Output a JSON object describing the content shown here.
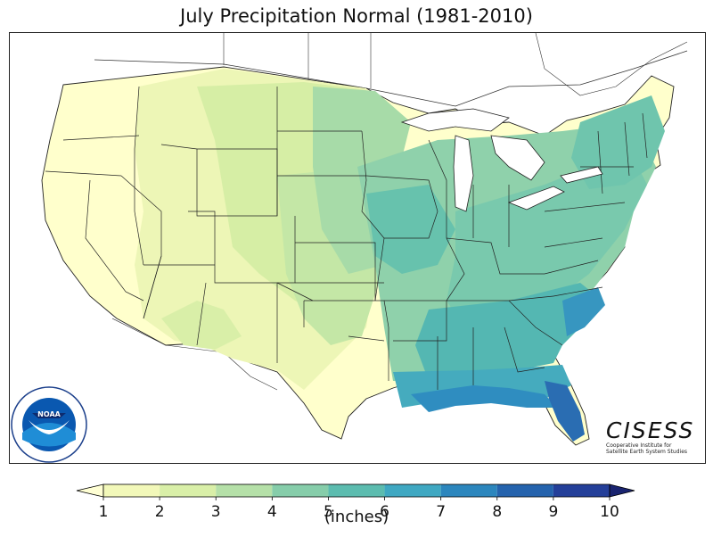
{
  "title": "July Precipitation Normal (1981-2010)",
  "colorbar": {
    "unit_label": "(inches)",
    "ticks": [
      "1",
      "2",
      "3",
      "4",
      "5",
      "6",
      "7",
      "8",
      "9",
      "10"
    ],
    "bins": [
      {
        "range": [
          1,
          2
        ],
        "color": "#f2f8b9"
      },
      {
        "range": [
          2,
          3
        ],
        "color": "#d9efa8"
      },
      {
        "range": [
          3,
          4
        ],
        "color": "#b5e0a8"
      },
      {
        "range": [
          4,
          5
        ],
        "color": "#86cdaa"
      },
      {
        "range": [
          5,
          6
        ],
        "color": "#5cbcaf"
      },
      {
        "range": [
          6,
          7
        ],
        "color": "#3fa8c2"
      },
      {
        "range": [
          7,
          8
        ],
        "color": "#2c86bd"
      },
      {
        "range": [
          8,
          9
        ],
        "color": "#2563ad"
      },
      {
        "range": [
          9,
          10
        ],
        "color": "#243f99"
      }
    ],
    "under_color": "#ffffd4",
    "over_color": "#1a2470"
  },
  "logos": {
    "noaa": {
      "center_text": "NOAA"
    },
    "cisess": {
      "name": "CISESS",
      "line1": "Cooperative Institute for",
      "line2": "Satellite Earth System Studies"
    }
  }
}
